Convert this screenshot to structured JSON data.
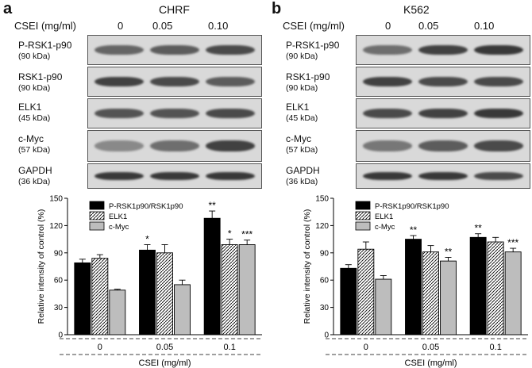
{
  "panels": [
    {
      "letter": "a",
      "cell_line": "CHRF",
      "csei_header": "CSEI (mg/ml)",
      "concentrations": [
        "0",
        "0.05",
        "0.10"
      ],
      "blots": [
        {
          "name": "P-RSK1-p90",
          "kda": "(90 kDa)",
          "intensities": [
            0.55,
            0.6,
            0.7
          ]
        },
        {
          "name": "RSK1-p90",
          "kda": "(90 kDa)",
          "intensities": [
            0.75,
            0.7,
            0.6
          ]
        },
        {
          "name": "ELK1",
          "kda": "(45 kDa)",
          "intensities": [
            0.65,
            0.65,
            0.7
          ]
        },
        {
          "name": "c-Myc",
          "kda": "(57 kDa)",
          "intensities": [
            0.35,
            0.5,
            0.75
          ]
        },
        {
          "name": "GAPDH",
          "kda": "(36 kDa)",
          "intensities": [
            0.8,
            0.8,
            0.8
          ]
        }
      ]
    },
    {
      "letter": "b",
      "cell_line": "K562",
      "csei_header": "CSEI (mg/ml)",
      "concentrations": [
        "0",
        "0.05",
        "0.10"
      ],
      "blots": [
        {
          "name": "P-RSK1-p90",
          "kda": "(90 kDa)",
          "intensities": [
            0.5,
            0.75,
            0.8
          ]
        },
        {
          "name": "RSK1-p90",
          "kda": "(90 kDa)",
          "intensities": [
            0.75,
            0.7,
            0.7
          ]
        },
        {
          "name": "ELK1",
          "kda": "(45 kDa)",
          "intensities": [
            0.7,
            0.75,
            0.8
          ]
        },
        {
          "name": "c-Myc",
          "kda": "(57 kDa)",
          "intensities": [
            0.45,
            0.6,
            0.7
          ]
        },
        {
          "name": "GAPDH",
          "kda": "(36 kDa)",
          "intensities": [
            0.8,
            0.8,
            0.7
          ]
        }
      ]
    }
  ],
  "chart_data": [
    {
      "type": "bar",
      "panel": "a",
      "categories": [
        "0",
        "0.05",
        "0.1"
      ],
      "xlabel": "CSEI (mg/ml)",
      "ylabel": "Relative intensity of control (%)",
      "ylim": [
        0,
        150
      ],
      "yticks": [
        "0",
        "30",
        "60",
        "90",
        "120",
        "150"
      ],
      "legend_position": "top-left",
      "series": [
        {
          "name": "P-RSK1p90/RSK1p90",
          "fill": "#000000",
          "values": [
            79,
            93,
            128
          ],
          "errors": [
            4,
            6,
            8
          ],
          "sig": [
            "",
            "*",
            "**"
          ]
        },
        {
          "name": "ELK1",
          "fill": "hatch",
          "values": [
            84,
            90,
            99
          ],
          "errors": [
            4,
            9,
            6
          ],
          "sig": [
            "",
            "",
            "*"
          ]
        },
        {
          "name": "c-Myc",
          "fill": "#bdbdbd",
          "values": [
            49,
            55,
            99
          ],
          "errors": [
            1,
            5,
            5
          ],
          "sig": [
            "",
            "",
            "***"
          ]
        }
      ]
    },
    {
      "type": "bar",
      "panel": "b",
      "categories": [
        "0",
        "0.05",
        "0.1"
      ],
      "xlabel": "CSEI (mg/ml)",
      "ylabel": "Relative intensity of control (%)",
      "ylim": [
        0,
        150
      ],
      "yticks": [
        "0",
        "30",
        "60",
        "90",
        "120",
        "150"
      ],
      "legend_position": "top-left",
      "series": [
        {
          "name": "P-RSK1p90/RSK1p90",
          "fill": "#000000",
          "values": [
            73,
            105,
            107
          ],
          "errors": [
            4,
            4,
            4
          ],
          "sig": [
            "",
            "**",
            "**"
          ]
        },
        {
          "name": "ELK1",
          "fill": "hatch",
          "values": [
            94,
            91,
            102
          ],
          "errors": [
            8,
            7,
            5
          ],
          "sig": [
            "",
            "",
            ""
          ]
        },
        {
          "name": "c-Myc",
          "fill": "#bdbdbd",
          "values": [
            61,
            81,
            91
          ],
          "errors": [
            4,
            4,
            4
          ],
          "sig": [
            "",
            "**",
            "***"
          ]
        }
      ]
    }
  ]
}
